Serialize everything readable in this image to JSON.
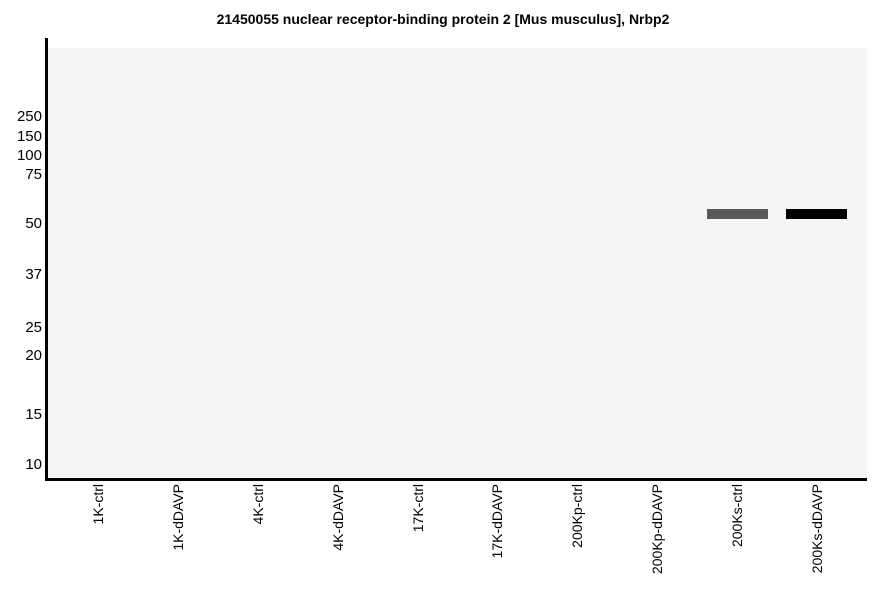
{
  "figure": {
    "title": "21450055 nuclear receptor-binding protein 2 [Mus musculus], Nrbp2"
  },
  "colors": {
    "page_background": "#ffffff",
    "plot_background": "#f5f5f5",
    "axis": "#000000",
    "text": "#000000",
    "band_200Ks_ctrl": "#595959",
    "band_200Ks_dDAVP": "#000000"
  },
  "chart_data": {
    "type": "western_blot",
    "title": "21450055 nuclear receptor-binding protein 2 [Mus musculus], Nrbp2",
    "grid": false,
    "legend": false,
    "mw_ticks": [
      {
        "value": "250",
        "frac_y": 0.1605
      },
      {
        "value": "150",
        "frac_y": 0.207
      },
      {
        "value": "100",
        "frac_y": 0.2512
      },
      {
        "value": "75",
        "frac_y": 0.2953
      },
      {
        "value": "50",
        "frac_y": 0.4093
      },
      {
        "value": "37",
        "frac_y": 0.5279
      },
      {
        "value": "25",
        "frac_y": 0.6512
      },
      {
        "value": "20",
        "frac_y": 0.7163
      },
      {
        "value": "15",
        "frac_y": 0.8535
      },
      {
        "value": "10",
        "frac_y": 0.9698
      }
    ],
    "lanes": [
      {
        "label": "1K-ctrl",
        "frac_x": 0.0611
      },
      {
        "label": "1K-dDAVP",
        "frac_x": 0.1586
      },
      {
        "label": "4K-ctrl",
        "frac_x": 0.2561
      },
      {
        "label": "4K-dDAVP",
        "frac_x": 0.3537
      },
      {
        "label": "17K-ctrl",
        "frac_x": 0.4512
      },
      {
        "label": "17K-dDAVP",
        "frac_x": 0.5487
      },
      {
        "label": "200Kp-ctrl",
        "frac_x": 0.6463
      },
      {
        "label": "200Kp-dDAVP",
        "frac_x": 0.7438
      },
      {
        "label": "200Ks-ctrl",
        "frac_x": 0.8413
      },
      {
        "label": "200Ks-dDAVP",
        "frac_x": 0.9389
      }
    ],
    "bands": [
      {
        "lane": "200Ks-ctrl",
        "lane_index": 8,
        "apparent_mw_kda": 55,
        "frac_y": 0.386,
        "height_frac": 0.0233,
        "width_frac": 0.0745,
        "color": "#595959"
      },
      {
        "lane": "200Ks-dDAVP",
        "lane_index": 9,
        "apparent_mw_kda": 55,
        "frac_y": 0.386,
        "height_frac": 0.0233,
        "width_frac": 0.0745,
        "color": "#000000"
      }
    ]
  }
}
